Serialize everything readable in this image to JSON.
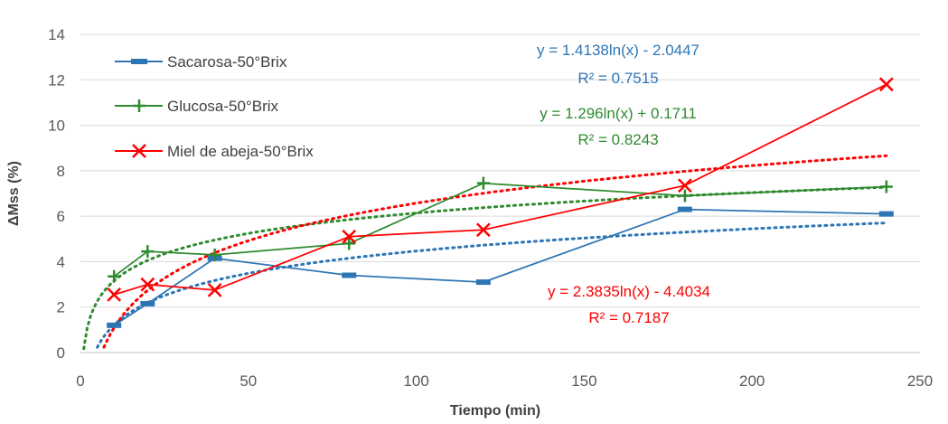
{
  "chart_data": {
    "type": "line",
    "xlabel": "Tiempo (min)",
    "ylabel": "ΔMss (%)",
    "xlim": [
      0,
      250
    ],
    "ylim": [
      0,
      14
    ],
    "xticks": [
      0,
      50,
      100,
      150,
      200,
      250
    ],
    "yticks": [
      0,
      2,
      4,
      6,
      8,
      10,
      12,
      14
    ],
    "grid": "horizontal",
    "legend_position": "top-left",
    "x": [
      10,
      20,
      40,
      80,
      120,
      180,
      240
    ],
    "series": [
      {
        "name": "Sacarosa-50°Brix",
        "color": "#2e75b6",
        "marker": "dash",
        "values": [
          1.2,
          2.15,
          4.15,
          3.4,
          3.1,
          6.3,
          6.1
        ],
        "trend": {
          "type": "log",
          "a": 1.4138,
          "b": -2.0447,
          "x_from": 5,
          "x_to": 240,
          "equation": "y = 1.4138ln(x) - 2.0447",
          "r2": "R² = 0.7515"
        }
      },
      {
        "name": "Glucosa-50°Brix",
        "color": "#2e8b2e",
        "marker": "plus",
        "values": [
          3.35,
          4.45,
          4.3,
          4.8,
          7.45,
          6.9,
          7.3
        ],
        "trend": {
          "type": "log",
          "a": 1.296,
          "b": 0.1711,
          "x_from": 1,
          "x_to": 240,
          "equation": "y = 1.296ln(x) + 0.1711",
          "r2": "R² = 0.8243"
        }
      },
      {
        "name": "Miel de abeja-50°Brix",
        "color": "#ff0000",
        "marker": "x",
        "values": [
          2.55,
          3.0,
          2.75,
          5.1,
          5.4,
          7.35,
          11.8
        ],
        "trend": {
          "type": "log",
          "a": 2.3835,
          "b": -4.4034,
          "x_from": 6,
          "x_to": 240,
          "equation": "y = 2.3835ln(x) - 4.4034",
          "r2": "R² = 0.7187"
        }
      }
    ]
  }
}
